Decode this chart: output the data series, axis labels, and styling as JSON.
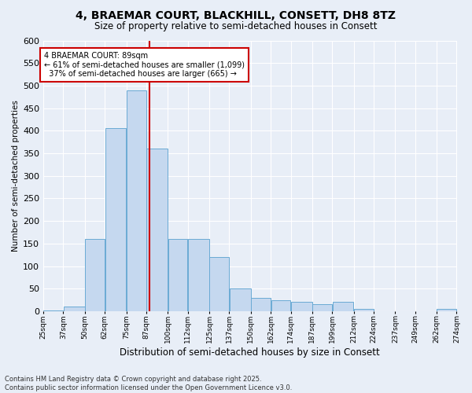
{
  "title_line1": "4, BRAEMAR COURT, BLACKHILL, CONSETT, DH8 8TZ",
  "title_line2": "Size of property relative to semi-detached houses in Consett",
  "xlabel": "Distribution of semi-detached houses by size in Consett",
  "ylabel": "Number of semi-detached properties",
  "footnote": "Contains HM Land Registry data © Crown copyright and database right 2025.\nContains public sector information licensed under the Open Government Licence v3.0.",
  "bin_edges": [
    25,
    37,
    50,
    62,
    75,
    87,
    100,
    112,
    125,
    137,
    150,
    162,
    174,
    187,
    199,
    212,
    224,
    237,
    249,
    262,
    274
  ],
  "bar_heights": [
    2,
    10,
    160,
    405,
    490,
    360,
    160,
    160,
    120,
    50,
    30,
    25,
    20,
    15,
    20,
    5,
    0,
    0,
    0,
    5
  ],
  "bar_color": "#c5d8ef",
  "bar_edge_color": "#6aaad4",
  "property_size": 89,
  "property_label": "4 BRAEMAR COURT: 89sqm",
  "pct_smaller": 61,
  "pct_larger": 37,
  "count_smaller": 1099,
  "count_larger": 665,
  "vline_color": "#cc0000",
  "annotation_box_edge": "#cc0000",
  "ylim": [
    0,
    600
  ],
  "yticks": [
    0,
    50,
    100,
    150,
    200,
    250,
    300,
    350,
    400,
    450,
    500,
    550,
    600
  ],
  "background_color": "#e8eef7",
  "plot_bg_color": "#e8eef7",
  "grid_color": "#ffffff",
  "tick_labels": [
    "25sqm",
    "37sqm",
    "50sqm",
    "62sqm",
    "75sqm",
    "87sqm",
    "100sqm",
    "112sqm",
    "125sqm",
    "137sqm",
    "150sqm",
    "162sqm",
    "174sqm",
    "187sqm",
    "199sqm",
    "212sqm",
    "224sqm",
    "237sqm",
    "249sqm",
    "262sqm",
    "274sqm"
  ]
}
